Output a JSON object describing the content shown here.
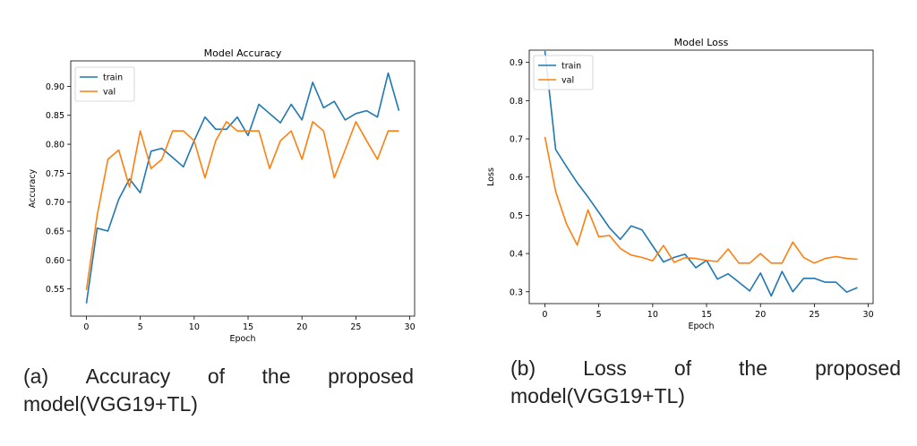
{
  "chart_data": [
    {
      "type": "line",
      "title": "Model Accuracy",
      "xlabel": "Epoch",
      "ylabel": "Accuracy",
      "xlim": [
        -1.45,
        30.45
      ],
      "ylim": [
        0.503,
        0.944
      ],
      "xticks": [
        0,
        5,
        10,
        15,
        20,
        25,
        30
      ],
      "yticks": [
        0.55,
        0.6,
        0.65,
        0.7,
        0.75,
        0.8,
        0.85,
        0.9
      ],
      "tick_labels_x": [
        "0",
        "5",
        "10",
        "15",
        "20",
        "25",
        "30"
      ],
      "tick_labels_y": [
        "0.55",
        "0.60",
        "0.65",
        "0.70",
        "0.75",
        "0.80",
        "0.85",
        "0.90"
      ],
      "legend": "top-left",
      "grid": false,
      "x": [
        0,
        1,
        2,
        3,
        4,
        5,
        6,
        7,
        8,
        9,
        10,
        11,
        12,
        13,
        14,
        15,
        16,
        17,
        18,
        19,
        20,
        21,
        22,
        23,
        24,
        25,
        26,
        27,
        28,
        29
      ],
      "series": [
        {
          "name": "train",
          "color": "#1f77b4",
          "values": [
            0.525,
            0.655,
            0.65,
            0.705,
            0.74,
            0.716,
            0.788,
            0.793,
            0.777,
            0.761,
            0.806,
            0.847,
            0.826,
            0.826,
            0.847,
            0.815,
            0.869,
            0.853,
            0.837,
            0.869,
            0.842,
            0.907,
            0.863,
            0.874,
            0.842,
            0.853,
            0.858,
            0.847,
            0.923,
            0.858
          ]
        },
        {
          "name": "val",
          "color": "#ff7f0e",
          "values": [
            0.548,
            0.677,
            0.774,
            0.79,
            0.726,
            0.823,
            0.758,
            0.774,
            0.823,
            0.823,
            0.806,
            0.742,
            0.806,
            0.839,
            0.823,
            0.823,
            0.823,
            0.758,
            0.806,
            0.823,
            0.774,
            0.839,
            0.823,
            0.742,
            0.79,
            0.839,
            0.806,
            0.774,
            0.823,
            0.823
          ]
        }
      ]
    },
    {
      "type": "line",
      "title": "Model Loss",
      "xlabel": "Epoch",
      "ylabel": "Loss",
      "xlim": [
        -1.45,
        30.45
      ],
      "ylim": [
        0.269,
        0.932
      ],
      "xticks": [
        0,
        5,
        10,
        15,
        20,
        25,
        30
      ],
      "yticks": [
        0.3,
        0.4,
        0.5,
        0.6,
        0.7,
        0.8,
        0.9
      ],
      "tick_labels_x": [
        "0",
        "5",
        "10",
        "15",
        "20",
        "25",
        "30"
      ],
      "tick_labels_y": [
        "0.3",
        "0.4",
        "0.5",
        "0.6",
        "0.7",
        "0.8",
        "0.9"
      ],
      "legend": "top-left",
      "grid": false,
      "x": [
        0,
        1,
        2,
        3,
        4,
        5,
        6,
        7,
        8,
        9,
        10,
        11,
        12,
        13,
        14,
        15,
        16,
        17,
        18,
        19,
        20,
        21,
        22,
        23,
        24,
        25,
        26,
        27,
        28,
        29
      ],
      "series": [
        {
          "name": "train",
          "color": "#1f77b4",
          "values": [
            0.93,
            0.672,
            0.628,
            0.585,
            0.548,
            0.508,
            0.467,
            0.437,
            0.472,
            0.462,
            0.42,
            0.378,
            0.39,
            0.398,
            0.363,
            0.382,
            0.333,
            0.347,
            0.325,
            0.302,
            0.349,
            0.289,
            0.353,
            0.3,
            0.335,
            0.335,
            0.325,
            0.325,
            0.299,
            0.311
          ]
        },
        {
          "name": "val",
          "color": "#ff7f0e",
          "values": [
            0.705,
            0.562,
            0.478,
            0.422,
            0.514,
            0.444,
            0.447,
            0.413,
            0.396,
            0.39,
            0.381,
            0.421,
            0.377,
            0.389,
            0.387,
            0.382,
            0.379,
            0.412,
            0.375,
            0.375,
            0.4,
            0.375,
            0.375,
            0.43,
            0.39,
            0.375,
            0.387,
            0.392,
            0.387,
            0.385
          ]
        }
      ]
    }
  ],
  "captions": [
    {
      "line1": [
        "(a)",
        "Accuracy",
        "of",
        "the",
        "proposed"
      ],
      "line2": "model(VGG19+TL)"
    },
    {
      "line1": [
        "(b)",
        "Loss",
        "of",
        "the",
        "proposed"
      ],
      "line2": "model(VGG19+TL)"
    }
  ]
}
